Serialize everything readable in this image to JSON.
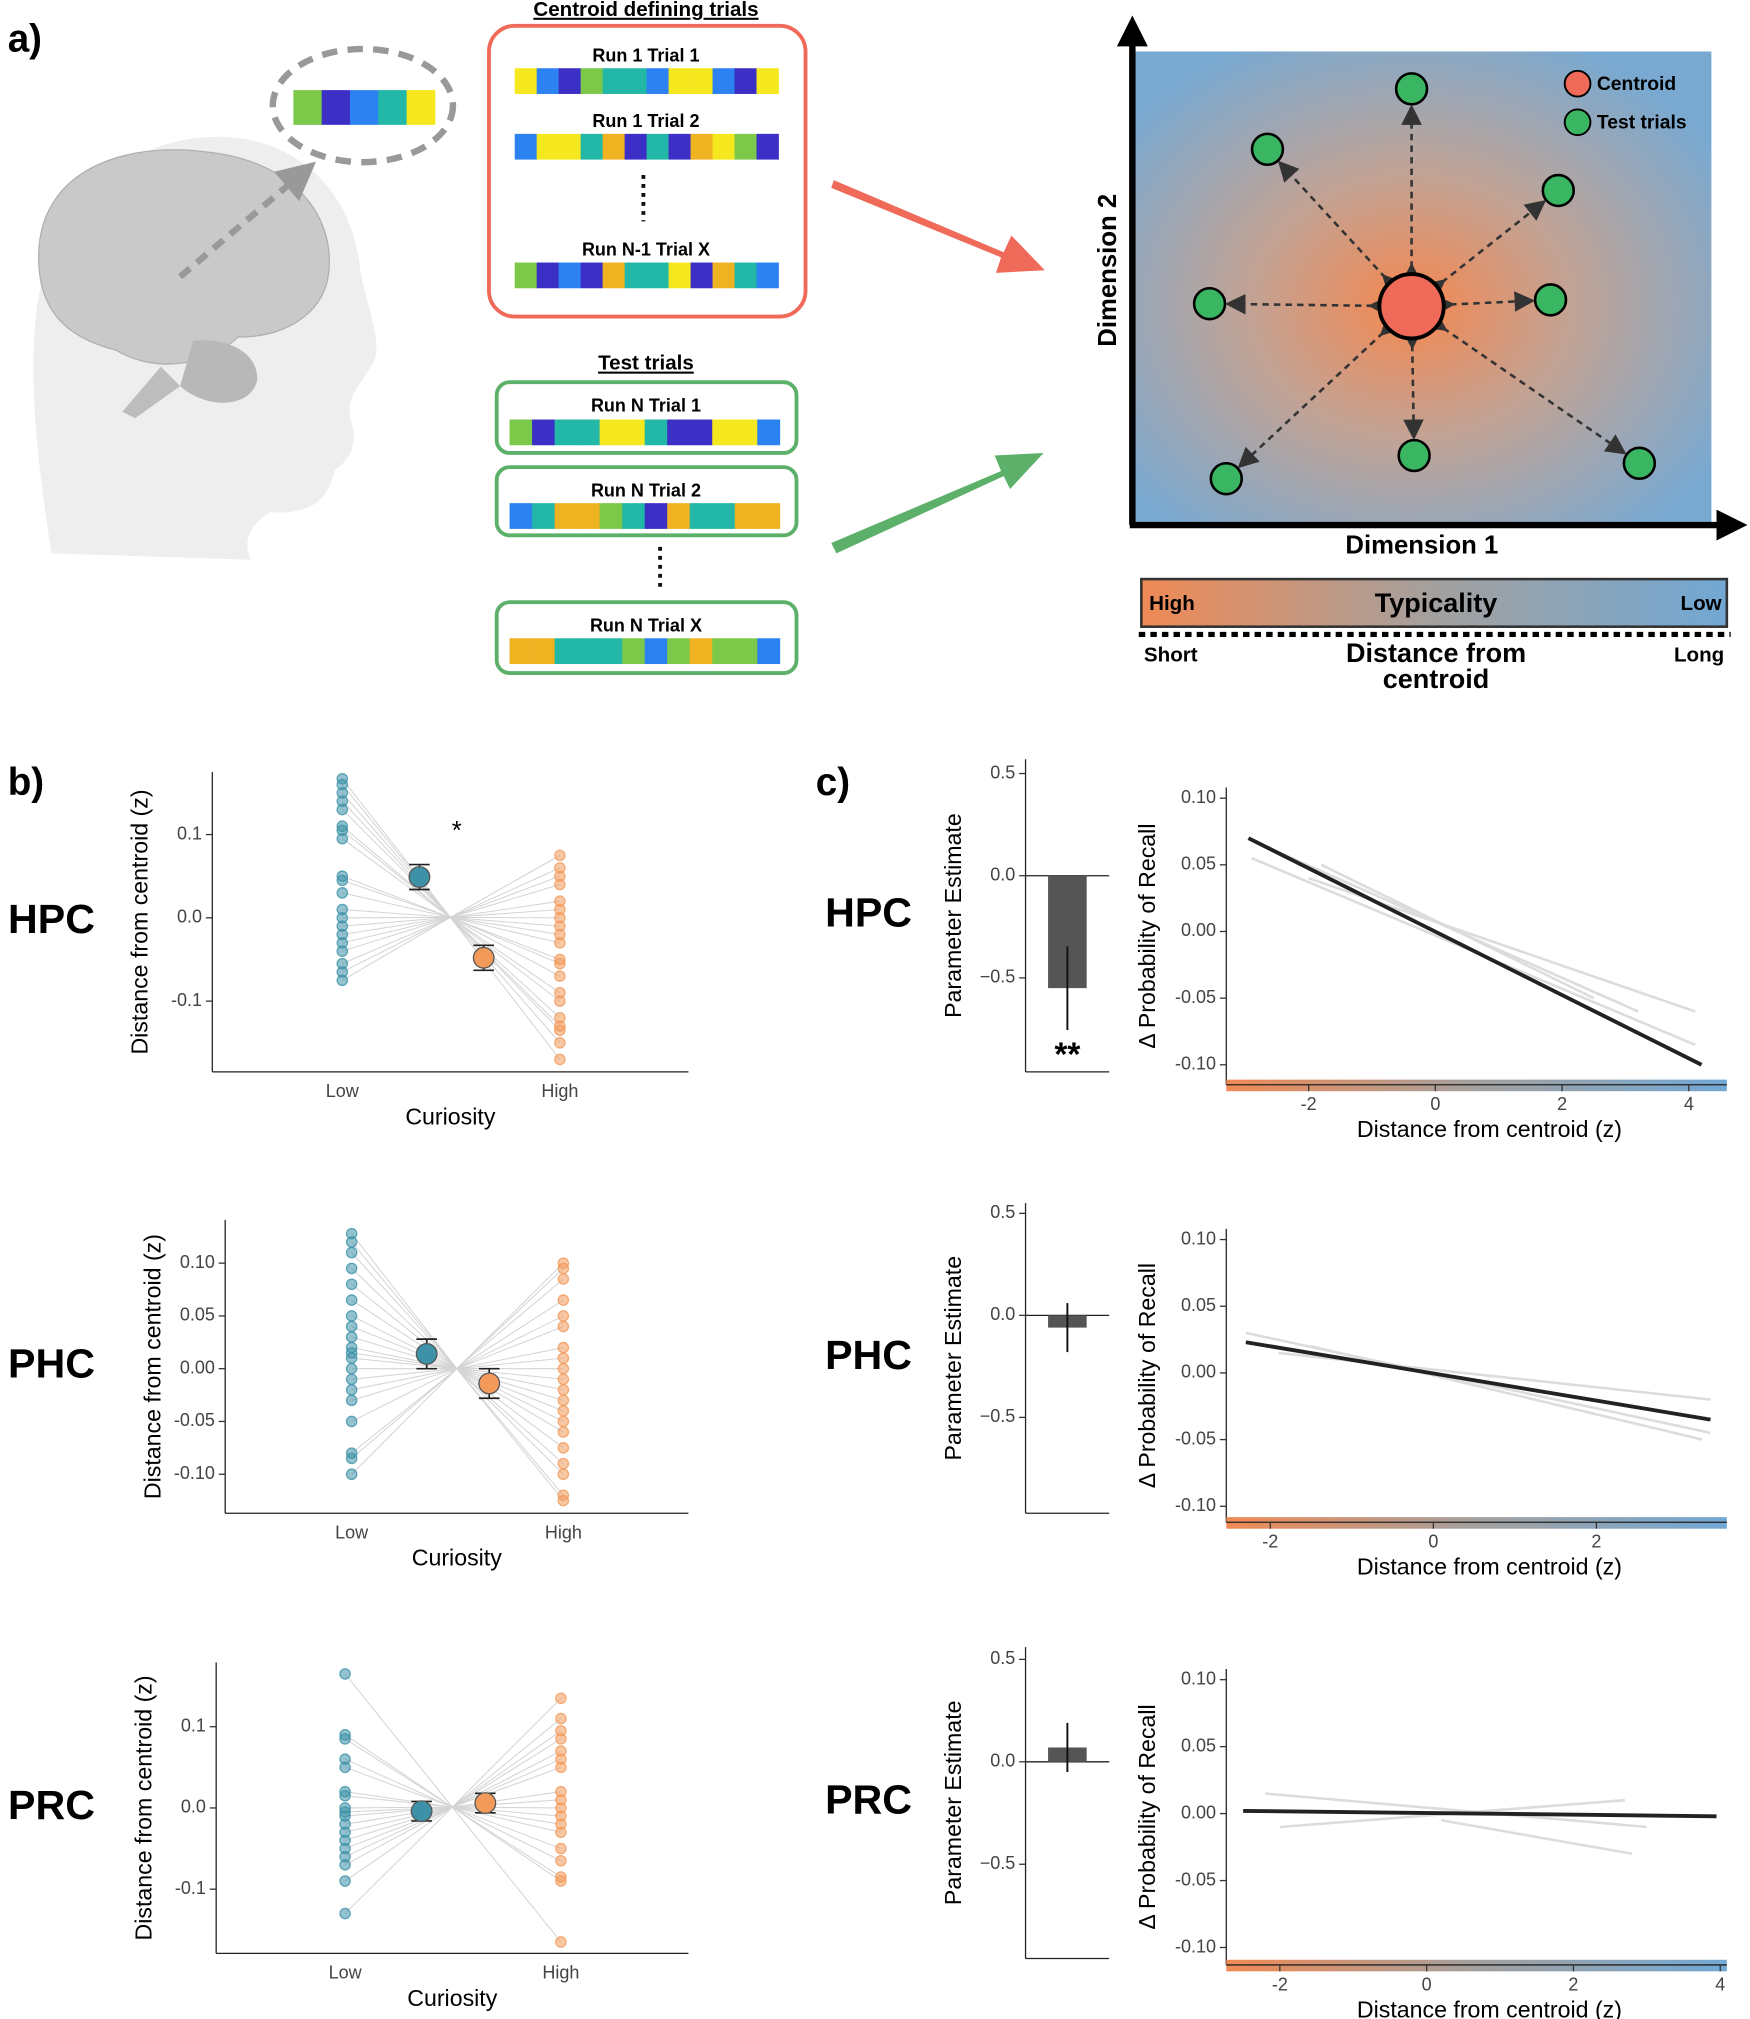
{
  "panel_a": {
    "label": "a)",
    "centroid_box": {
      "title": "Centroid defining trials",
      "trials": [
        "Run 1 Trial 1",
        "Run 1 Trial 2",
        "Run N-1 Trial X"
      ]
    },
    "test_box": {
      "title": "Test trials",
      "trials": [
        "Run N Trial 1",
        "Run N Trial 2",
        "Run N Trial X"
      ]
    },
    "space": {
      "legend": [
        "Centroid",
        "Test trials"
      ],
      "y_label": "Dimension 2",
      "x_label": "Dimension 1"
    },
    "typicality": {
      "high": "High",
      "label": "Typicality",
      "low": "Low"
    },
    "distance": {
      "short": "Short",
      "label": [
        "Distance from",
        "centroid"
      ],
      "long": "Long"
    }
  },
  "panel_labels": [
    "b)",
    "c)"
  ],
  "chart_data": [
    {
      "type": "strip",
      "region": "HPC",
      "y_label": "Distance from centroid (z)",
      "x_label": "Curiosity",
      "categories": [
        "Low",
        "High"
      ],
      "colors": [
        "#3d92a8",
        "#f39a5b"
      ],
      "points": [
        [
          0.167,
          0.16,
          0.15,
          0.14,
          0.13,
          0.11,
          0.105,
          0.095,
          0.05,
          0.045,
          0.03,
          0.01,
          0.0,
          -0.01,
          -0.02,
          -0.03,
          -0.04,
          -0.055,
          -0.065,
          -0.075
        ],
        [
          0.075,
          0.06,
          0.05,
          0.04,
          0.02,
          0.01,
          0.0,
          -0.01,
          -0.02,
          -0.03,
          -0.05,
          -0.055,
          -0.07,
          -0.09,
          -0.1,
          -0.12,
          -0.13,
          -0.135,
          -0.15,
          -0.17
        ]
      ],
      "means": [
        0.049,
        -0.048
      ],
      "errors": [
        0.015,
        0.015
      ],
      "annotation": "*",
      "ylim": [
        -0.185,
        0.175
      ],
      "yticks": [
        -0.1,
        {
          "value": 0,
          "label": "0.0"
        },
        0.1
      ]
    },
    {
      "type": "strip",
      "region": "PHC",
      "y_label": "Distance from centroid (z)",
      "x_label": "Curiosity",
      "categories": [
        "Low",
        "High"
      ],
      "colors": [
        "#3d92a8",
        "#f39a5b"
      ],
      "points": [
        [
          0.128,
          0.12,
          0.11,
          0.095,
          0.08,
          0.065,
          0.05,
          0.04,
          0.03,
          0.02,
          0.015,
          0.01,
          0.0,
          -0.01,
          -0.02,
          -0.03,
          -0.05,
          -0.08,
          -0.085,
          -0.1
        ],
        [
          0.1,
          0.095,
          0.085,
          0.065,
          0.05,
          0.04,
          0.02,
          0.01,
          0.0,
          -0.01,
          -0.02,
          -0.03,
          -0.04,
          -0.05,
          -0.06,
          -0.075,
          -0.09,
          -0.1,
          -0.12,
          -0.125
        ]
      ],
      "means": [
        0.014,
        -0.014
      ],
      "errors": [
        0.014,
        0.014
      ],
      "ylim": [
        -0.137,
        0.141
      ],
      "yticks": [
        {
          "value": -0.1,
          "label": "-0.10"
        },
        -0.05,
        {
          "value": 0,
          "label": "0.00"
        },
        0.05,
        {
          "value": 0.1,
          "label": "0.10"
        }
      ]
    },
    {
      "type": "strip",
      "region": "PRC",
      "y_label": "Distance from centroid (z)",
      "x_label": "Curiosity",
      "categories": [
        "Low",
        "High"
      ],
      "colors": [
        "#3d92a8",
        "#f39a5b"
      ],
      "points": [
        [
          0.165,
          0.09,
          0.085,
          0.06,
          0.05,
          0.02,
          0.015,
          0.0,
          -0.005,
          -0.01,
          -0.02,
          -0.03,
          -0.04,
          -0.05,
          -0.06,
          -0.07,
          -0.09,
          -0.13
        ],
        [
          0.135,
          0.11,
          0.095,
          0.085,
          0.07,
          0.06,
          0.05,
          0.02,
          0.01,
          0.0,
          -0.01,
          -0.02,
          -0.03,
          -0.05,
          -0.065,
          -0.085,
          -0.09,
          -0.165
        ]
      ],
      "means": [
        -0.004,
        0.006
      ],
      "errors": [
        0.012,
        0.012
      ],
      "ylim": [
        -0.179,
        0.179
      ],
      "yticks": [
        -0.1,
        {
          "value": 0,
          "label": "0.0"
        },
        0.1
      ]
    },
    {
      "type": "bar",
      "region": "HPC",
      "y_label": "Parameter Estimate",
      "values": [
        -0.55
      ],
      "errors": [
        0.205
      ],
      "annotation": "**",
      "color": "#555555",
      "ylim": [
        -0.96,
        0.57
      ],
      "yticks": [
        {
          "value": -0.5,
          "label": "−0.5"
        },
        {
          "value": 0,
          "label": "0.0"
        },
        0.5
      ]
    },
    {
      "type": "bar",
      "region": "PHC",
      "y_label": "Parameter Estimate",
      "values": [
        -0.06
      ],
      "errors": [
        0.12
      ],
      "color": "#555555",
      "ylim": [
        -0.97,
        0.55
      ],
      "yticks": [
        {
          "value": -0.5,
          "label": "−0.5"
        },
        {
          "value": 0,
          "label": "0.0"
        },
        0.5
      ]
    },
    {
      "type": "bar",
      "region": "PRC",
      "y_label": "Parameter Estimate",
      "values": [
        0.07
      ],
      "errors": [
        0.12
      ],
      "color": "#555555",
      "ylim": [
        -0.96,
        0.56
      ],
      "yticks": [
        {
          "value": -0.5,
          "label": "−0.5"
        },
        {
          "value": 0,
          "label": "0.0"
        },
        0.5
      ]
    },
    {
      "type": "line",
      "y_label": "Δ Probability of Recall",
      "x_label": "Distance from centroid (z)",
      "x": [
        -2.95,
        4.2
      ],
      "values": [
        0.07,
        -0.1
      ],
      "color": "#222222",
      "subject_lines": [
        {
          "x": [
            -2.9,
            4.1
          ],
          "values": [
            0.055,
            -0.085
          ]
        },
        {
          "x": [
            -2.5,
            3.2
          ],
          "values": [
            0.06,
            -0.06
          ]
        },
        {
          "x": [
            -2,
            4.1
          ],
          "values": [
            0.04,
            -0.06
          ]
        },
        {
          "x": [
            -1.8,
            2.5
          ],
          "values": [
            0.05,
            -0.05
          ]
        }
      ],
      "xlim": [
        -3.3,
        4.6
      ],
      "xticks": [
        -2,
        0,
        2,
        4
      ],
      "ylim": [
        -0.115,
        0.108
      ],
      "yticks": [
        {
          "value": -0.1,
          "label": "-0.10"
        },
        -0.05,
        {
          "value": 0,
          "label": "0.00"
        },
        0.05,
        {
          "value": 0.1,
          "label": "0.10"
        }
      ]
    },
    {
      "type": "line",
      "y_label": "Δ Probability of Recall",
      "x_label": "Distance from centroid (z)",
      "x": [
        -2.3,
        3.4
      ],
      "values": [
        0.023,
        -0.035
      ],
      "color": "#222222",
      "subject_lines": [
        {
          "x": [
            -2.3,
            3.4
          ],
          "values": [
            0.03,
            -0.045
          ]
        },
        {
          "x": [
            -1.9,
            3.4
          ],
          "values": [
            0.015,
            -0.02
          ]
        },
        {
          "x": [
            -1.5,
            3.3
          ],
          "values": [
            0.02,
            -0.05
          ]
        }
      ],
      "xlim": [
        -2.54,
        3.6
      ],
      "xticks": [
        -2,
        0,
        2
      ],
      "ylim": [
        -0.112,
        0.108
      ],
      "yticks": [
        {
          "value": -0.1,
          "label": "-0.10"
        },
        -0.05,
        {
          "value": 0,
          "label": "0.00"
        },
        0.05,
        {
          "value": 0.1,
          "label": "0.10"
        }
      ]
    },
    {
      "type": "line",
      "y_label": "Δ Probability of Recall",
      "x_label": "Distance from centroid (z)",
      "x": [
        -2.5,
        3.95
      ],
      "values": [
        0.002,
        -0.002
      ],
      "color": "#222222",
      "subject_lines": [
        {
          "x": [
            -2.2,
            3
          ],
          "values": [
            0.015,
            -0.01
          ]
        },
        {
          "x": [
            -2,
            2.7
          ],
          "values": [
            -0.01,
            0.01
          ]
        },
        {
          "x": [
            0.2,
            2.8
          ],
          "values": [
            -0.005,
            -0.03
          ]
        }
      ],
      "xlim": [
        -2.73,
        4.09
      ],
      "xticks": [
        -2,
        0,
        2,
        4
      ],
      "ylim": [
        -0.113,
        0.108
      ],
      "yticks": [
        {
          "value": -0.1,
          "label": "-0.10"
        },
        -0.05,
        {
          "value": 0,
          "label": "0.00"
        },
        0.05,
        {
          "value": 0.1,
          "label": "0.10"
        }
      ]
    }
  ]
}
